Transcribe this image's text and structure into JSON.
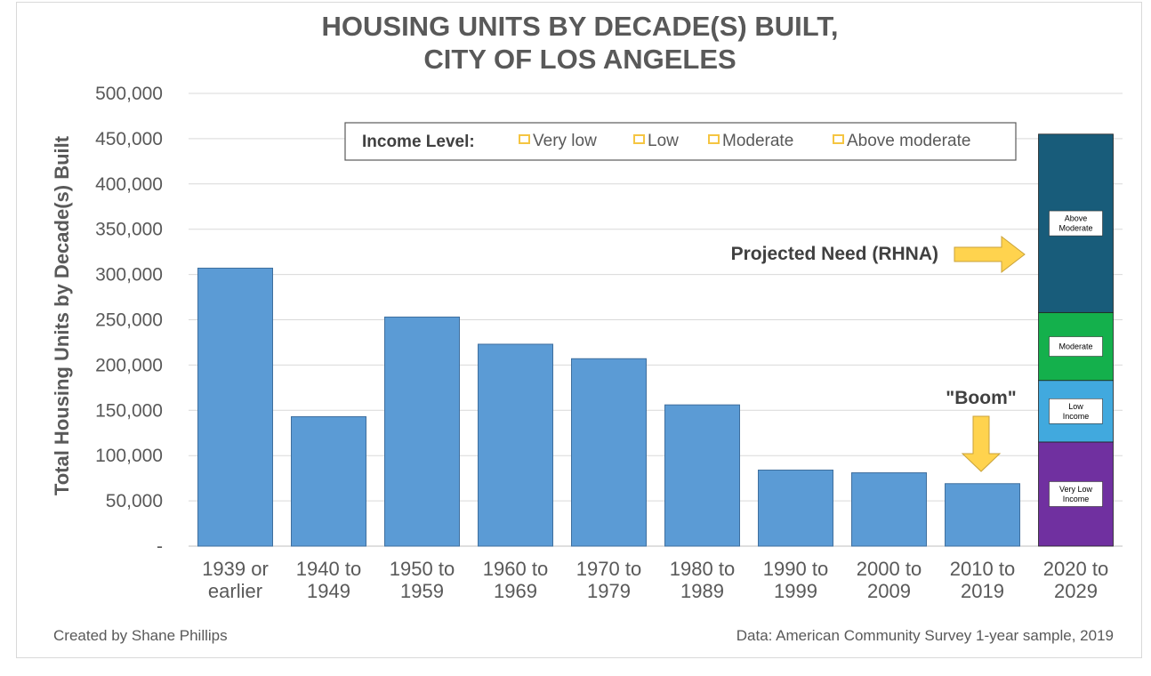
{
  "chart_data": {
    "type": "bar",
    "title_lines": [
      "HOUSING UNITS BY DECADE(S) BUILT,",
      "CITY OF LOS ANGELES"
    ],
    "ylabel": "Total Housing Units by Decade(s) Built",
    "ylim": [
      0,
      500000
    ],
    "yticks": [
      {
        "value": 0,
        "label": "-"
      },
      {
        "value": 50000,
        "label": "50,000"
      },
      {
        "value": 100000,
        "label": "100,000"
      },
      {
        "value": 150000,
        "label": "150,000"
      },
      {
        "value": 200000,
        "label": "200,000"
      },
      {
        "value": 250000,
        "label": "250,000"
      },
      {
        "value": 300000,
        "label": "300,000"
      },
      {
        "value": 350000,
        "label": "350,000"
      },
      {
        "value": 400000,
        "label": "400,000"
      },
      {
        "value": 450000,
        "label": "450,000"
      },
      {
        "value": 500000,
        "label": "500,000"
      }
    ],
    "grid": true,
    "categories": [
      [
        "1939 or",
        "earlier"
      ],
      [
        "1940 to",
        "1949"
      ],
      [
        "1950 to",
        "1959"
      ],
      [
        "1960 to",
        "1969"
      ],
      [
        "1970 to",
        "1979"
      ],
      [
        "1980 to",
        "1989"
      ],
      [
        "1990 to",
        "1999"
      ],
      [
        "2000 to",
        "2009"
      ],
      [
        "2010 to",
        "2019"
      ],
      [
        "2020 to",
        "2029"
      ]
    ],
    "values": [
      307000,
      143000,
      253000,
      223000,
      207000,
      156000,
      84000,
      81000,
      69000,
      null
    ],
    "bar_color": "#5B9BD5",
    "projected": {
      "category_index": 9,
      "segments": [
        {
          "name": "Very Low Income",
          "value": 115000,
          "color": "#7030A0",
          "label_lines": [
            "Very Low",
            "Income"
          ]
        },
        {
          "name": "Low Income",
          "value": 68000,
          "color": "#41A9DE",
          "label_lines": [
            "Low",
            "Income"
          ]
        },
        {
          "name": "Moderate",
          "value": 75000,
          "color": "#14B04C",
          "label_lines": [
            "Moderate"
          ]
        },
        {
          "name": "Above Moderate",
          "value": 197000,
          "color": "#185C7A",
          "label_lines": [
            "Above",
            "Moderate"
          ]
        }
      ]
    },
    "legend": {
      "position": "top-right",
      "title": "Income Level:",
      "items": [
        "Very low",
        "Low",
        "Moderate",
        "Above moderate"
      ],
      "marker_color": "#F5C542"
    },
    "annotations": {
      "projected_need": "Projected Need (RHNA)",
      "boom": "\"Boom\"",
      "arrow_color": "#FFD34E"
    }
  },
  "footer": {
    "left": "Created by Shane Phillips",
    "right": "Data: American Community Survey 1-year sample, 2019"
  }
}
